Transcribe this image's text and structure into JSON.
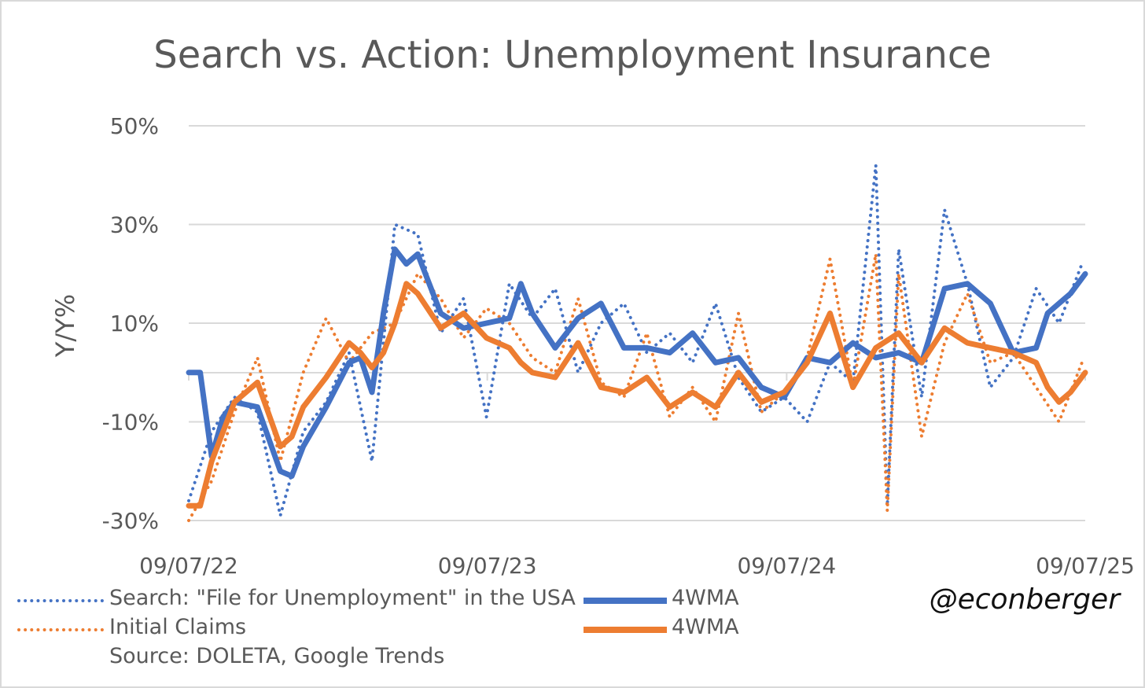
{
  "chart_data": {
    "type": "line",
    "title": "Search vs. Action: Unemployment Insurance",
    "ylabel": "Y/Y%",
    "xlabel": "",
    "ylim": [
      -30,
      50
    ],
    "yticks": [
      "50%",
      "30%",
      "10%",
      "-10%",
      "-30%"
    ],
    "ytick_values": [
      50,
      30,
      10,
      -10,
      -30
    ],
    "xticks": [
      "09/07/22",
      "09/07/23",
      "09/07/24",
      "09/07/25"
    ],
    "xtick_values": [
      "2022-09-07",
      "2023-09-07",
      "2024-09-07",
      "2025-09-07"
    ],
    "grid": true,
    "legend_position": "bottom",
    "source": "Source: DOLETA, Google Trends",
    "handle": "@econberger",
    "series": [
      {
        "name": "Search: \"File for Unemployment\" in the USA",
        "style": "dotted",
        "color": "#4472C4",
        "x": [
          "2022-09-07",
          "2022-10-05",
          "2022-11-02",
          "2022-11-30",
          "2022-12-28",
          "2023-01-25",
          "2023-02-22",
          "2023-03-22",
          "2023-04-19",
          "2023-05-17",
          "2023-06-14",
          "2023-07-12",
          "2023-08-09",
          "2023-09-06",
          "2023-10-04",
          "2023-11-01",
          "2023-11-29",
          "2023-12-27",
          "2024-01-24",
          "2024-02-21",
          "2024-03-20",
          "2024-04-17",
          "2024-05-15",
          "2024-06-12",
          "2024-07-10",
          "2024-08-07",
          "2024-09-04",
          "2024-10-02",
          "2024-10-30",
          "2024-11-27",
          "2024-12-25",
          "2025-01-08",
          "2025-01-22",
          "2025-02-19",
          "2025-03-19",
          "2025-04-16",
          "2025-05-14",
          "2025-06-11",
          "2025-07-09",
          "2025-08-06",
          "2025-09-03"
        ],
        "y": [
          -26,
          -12,
          -5,
          -8,
          -29,
          -12,
          -6,
          4,
          -18,
          30,
          28,
          8,
          15,
          -9,
          18,
          11,
          17,
          0,
          10,
          14,
          4,
          8,
          2,
          14,
          -1,
          -8,
          -5,
          -10,
          2,
          -2,
          42,
          -27,
          25,
          -5,
          33,
          18,
          -3,
          3,
          17,
          10,
          22
        ]
      },
      {
        "name": "4WMA",
        "style": "solid",
        "color": "#4472C4",
        "x": [
          "2022-09-07",
          "2022-09-21",
          "2022-10-05",
          "2022-10-19",
          "2022-11-02",
          "2022-11-30",
          "2022-12-28",
          "2023-01-11",
          "2023-01-25",
          "2023-02-22",
          "2023-03-22",
          "2023-04-05",
          "2023-04-19",
          "2023-05-03",
          "2023-05-17",
          "2023-05-31",
          "2023-06-14",
          "2023-07-12",
          "2023-08-09",
          "2023-09-06",
          "2023-10-04",
          "2023-10-18",
          "2023-11-01",
          "2023-11-29",
          "2023-12-27",
          "2024-01-24",
          "2024-02-21",
          "2024-03-20",
          "2024-04-17",
          "2024-05-15",
          "2024-06-12",
          "2024-07-10",
          "2024-08-07",
          "2024-09-04",
          "2024-10-02",
          "2024-10-30",
          "2024-11-27",
          "2024-12-25",
          "2025-01-22",
          "2025-02-19",
          "2025-03-19",
          "2025-04-16",
          "2025-05-14",
          "2025-06-11",
          "2025-07-09",
          "2025-07-23",
          "2025-08-06",
          "2025-08-20",
          "2025-09-07"
        ],
        "y": [
          0,
          0,
          -17,
          -9,
          -6,
          -7,
          -20,
          -21,
          -15,
          -7,
          2,
          3,
          -4,
          12,
          25,
          22,
          24,
          12,
          9,
          10,
          11,
          18,
          12,
          5,
          11,
          14,
          5,
          5,
          4,
          8,
          2,
          3,
          -3,
          -5,
          3,
          2,
          6,
          3,
          4,
          2,
          17,
          18,
          14,
          4,
          5,
          12,
          14,
          16,
          20
        ]
      },
      {
        "name": "Initial Claims",
        "style": "dotted",
        "color": "#ED7D31",
        "x": [
          "2022-09-07",
          "2022-10-05",
          "2022-11-02",
          "2022-11-30",
          "2022-12-28",
          "2023-01-25",
          "2023-02-22",
          "2023-03-22",
          "2023-04-19",
          "2023-05-17",
          "2023-06-14",
          "2023-07-12",
          "2023-08-09",
          "2023-09-06",
          "2023-10-04",
          "2023-11-01",
          "2023-11-29",
          "2023-12-27",
          "2024-01-24",
          "2024-02-21",
          "2024-03-20",
          "2024-04-17",
          "2024-05-15",
          "2024-06-12",
          "2024-07-10",
          "2024-08-07",
          "2024-09-04",
          "2024-10-02",
          "2024-10-30",
          "2024-11-27",
          "2024-12-25",
          "2025-01-08",
          "2025-01-22",
          "2025-02-19",
          "2025-03-19",
          "2025-04-16",
          "2025-05-14",
          "2025-06-11",
          "2025-07-09",
          "2025-08-06",
          "2025-09-03"
        ],
        "y": [
          -30,
          -22,
          -8,
          3,
          -18,
          0,
          11,
          2,
          8,
          10,
          20,
          15,
          7,
          13,
          10,
          3,
          0,
          15,
          -2,
          -5,
          8,
          -9,
          -3,
          -10,
          12,
          -8,
          -4,
          3,
          23,
          -3,
          24,
          -28,
          20,
          -13,
          6,
          16,
          2,
          4,
          -3,
          -10,
          2
        ]
      },
      {
        "name": "4WMA",
        "style": "solid",
        "color": "#ED7D31",
        "x": [
          "2022-09-07",
          "2022-09-21",
          "2022-10-05",
          "2022-10-19",
          "2022-11-02",
          "2022-11-30",
          "2022-12-28",
          "2023-01-11",
          "2023-01-25",
          "2023-02-22",
          "2023-03-22",
          "2023-04-05",
          "2023-04-19",
          "2023-05-03",
          "2023-05-17",
          "2023-05-31",
          "2023-06-14",
          "2023-07-12",
          "2023-08-09",
          "2023-09-06",
          "2023-10-04",
          "2023-10-18",
          "2023-11-01",
          "2023-11-29",
          "2023-12-27",
          "2024-01-24",
          "2024-02-21",
          "2024-03-20",
          "2024-04-17",
          "2024-05-15",
          "2024-06-12",
          "2024-07-10",
          "2024-08-07",
          "2024-09-04",
          "2024-10-02",
          "2024-10-30",
          "2024-11-27",
          "2024-12-25",
          "2025-01-22",
          "2025-02-19",
          "2025-03-19",
          "2025-04-16",
          "2025-05-14",
          "2025-06-11",
          "2025-07-09",
          "2025-07-23",
          "2025-08-06",
          "2025-08-20",
          "2025-09-07"
        ],
        "y": [
          -27,
          -27,
          -18,
          -12,
          -6,
          -2,
          -15,
          -13,
          -7,
          -1,
          6,
          4,
          1,
          4,
          10,
          18,
          16,
          9,
          12,
          7,
          5,
          2,
          0,
          -1,
          6,
          -3,
          -4,
          -1,
          -7,
          -4,
          -7,
          0,
          -6,
          -4,
          2,
          12,
          -3,
          5,
          8,
          2,
          9,
          6,
          5,
          4,
          2,
          -3,
          -6,
          -4,
          0
        ]
      }
    ]
  },
  "legend": {
    "rows": [
      {
        "left_label": "Search: \"File for Unemployment\" in the USA",
        "left_color": "#4472C4",
        "right_label": "4WMA",
        "right_color": "#4472C4"
      },
      {
        "left_label": "Initial Claims",
        "left_color": "#ED7D31",
        "right_label": "4WMA",
        "right_color": "#ED7D31"
      }
    ]
  }
}
